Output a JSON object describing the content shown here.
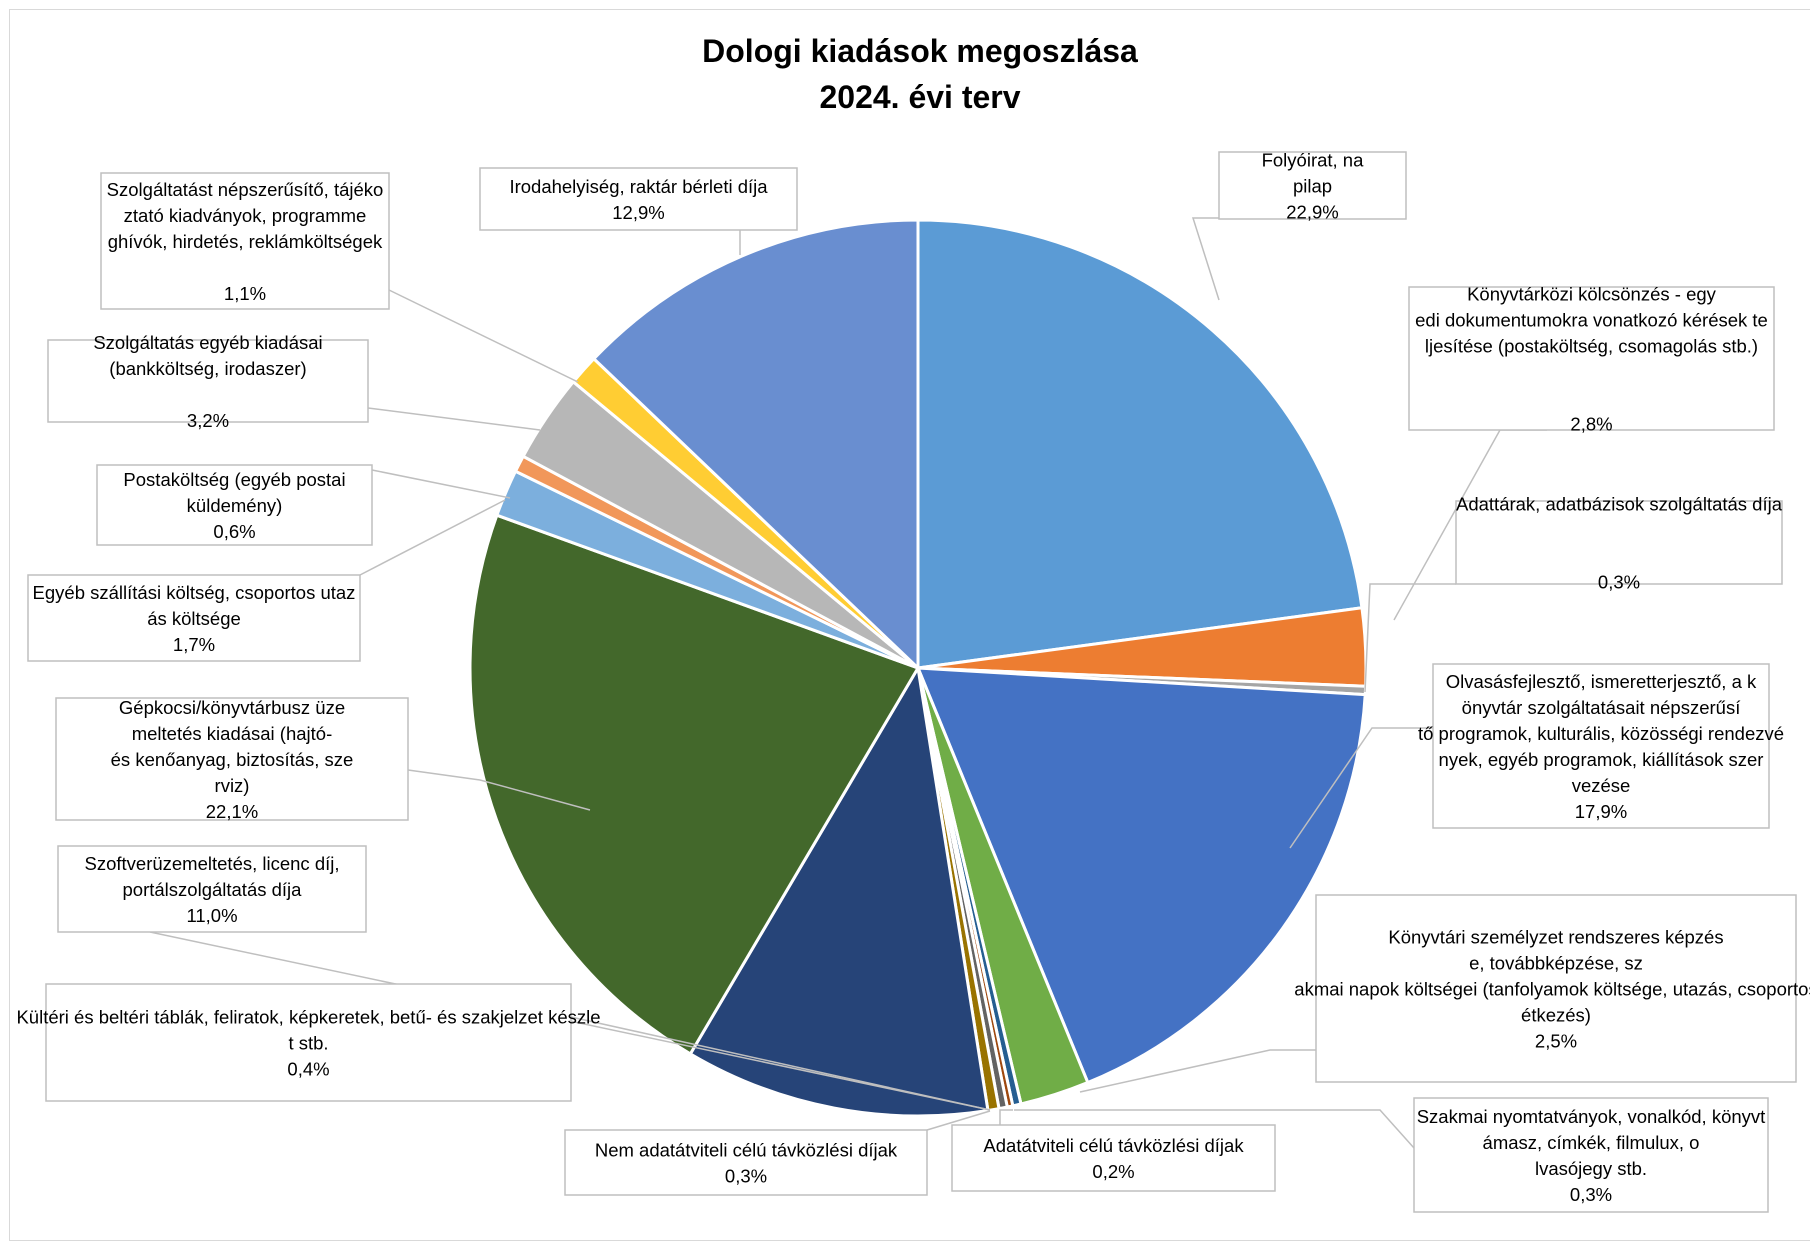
{
  "chart_data": {
    "type": "pie",
    "title": "Dologi kiadások megoszlása",
    "subtitle": "2024. évi terv",
    "slices": [
      {
        "label": "Folyóirat, napilap",
        "value": 22.9,
        "value_label": "22,9%",
        "color": "#5b9bd5"
      },
      {
        "label": "Könyvtárközi kölcsönzés - egyedi dokumentumokra vonatkozó kérések teljesítése (postaköltség, csomagolás stb.)",
        "value": 2.8,
        "value_label": "2,8%",
        "color": "#ed7d31"
      },
      {
        "label": "Adattárak, adatbázisok szolgáltatás díja",
        "value": 0.3,
        "value_label": "0,3%",
        "color": "#a5a5a5"
      },
      {
        "label": "Olvasásfejlesztő, ismeretterjesztő, a könyvtár szolgáltatásait népszerűsítő programok, kulturális, közösségi rendezvények, egyéb programok, kiállítások szervezése",
        "value": 17.9,
        "value_label": "17,9%",
        "color": "#4472c4"
      },
      {
        "label": "Könyvtári személyzet rendszeres képzése, továbbképzése, szakmai napok költségei (tanfolyamok költsége, utazás, csoportos étkezés)",
        "value": 2.5,
        "value_label": "2,5%",
        "color": "#70ad47"
      },
      {
        "label": "Szakmai nyomtatványok, vonalkód, könyvtámasz, címkék, filmulux, olvasójegy stb.",
        "value": 0.3,
        "value_label": "0,3%",
        "color": "#255e91"
      },
      {
        "label": "Adatátviteli célú távközlési díjak",
        "value": 0.2,
        "value_label": "0,2%",
        "color": "#9e480e"
      },
      {
        "label": "Nem adatátviteli célú távközlési díjak",
        "value": 0.3,
        "value_label": "0,3%",
        "color": "#636363"
      },
      {
        "label": "Kültéri és beltéri táblák, feliratok, képkeretek, betű- és szakjelzet készlet stb.",
        "value": 0.4,
        "value_label": "0,4%",
        "color": "#997300"
      },
      {
        "label": "Szoftverüzemeltetés, licenc díj, portálszolgáltatás díja",
        "value": 11.0,
        "value_label": "11,0%",
        "color": "#264478"
      },
      {
        "label": "Gépkocsi/könyvtárbusz üzemeltetés kiadásai (hajtó- és kenőanyag, biztosítás, szerviz)",
        "value": 22.1,
        "value_label": "22,1%",
        "color": "#43682b"
      },
      {
        "label": "Egyéb szállítási költség, csoportos utazás költsége",
        "value": 1.7,
        "value_label": "1,7%",
        "color": "#7cafdd"
      },
      {
        "label": "Postaköltség (egyéb postai küldemény)",
        "value": 0.6,
        "value_label": "0,6%",
        "color": "#f1975a"
      },
      {
        "label": "Szolgáltatás egyéb kiadásai (bankköltség, irodaszer)",
        "value": 3.2,
        "value_label": "3,2%",
        "color": "#b7b7b7"
      },
      {
        "label": "Szolgáltatást népszerűsítő, tájékoztató kiadványok, programmeghívók, hirdetés, reklámköltségek",
        "value": 1.1,
        "value_label": "1,1%",
        "color": "#ffcd33"
      },
      {
        "label": "Irodahelyiség, raktár bérleti díja",
        "value": 12.9,
        "value_label": "12,9%",
        "color": "#698ed0"
      }
    ]
  }
}
